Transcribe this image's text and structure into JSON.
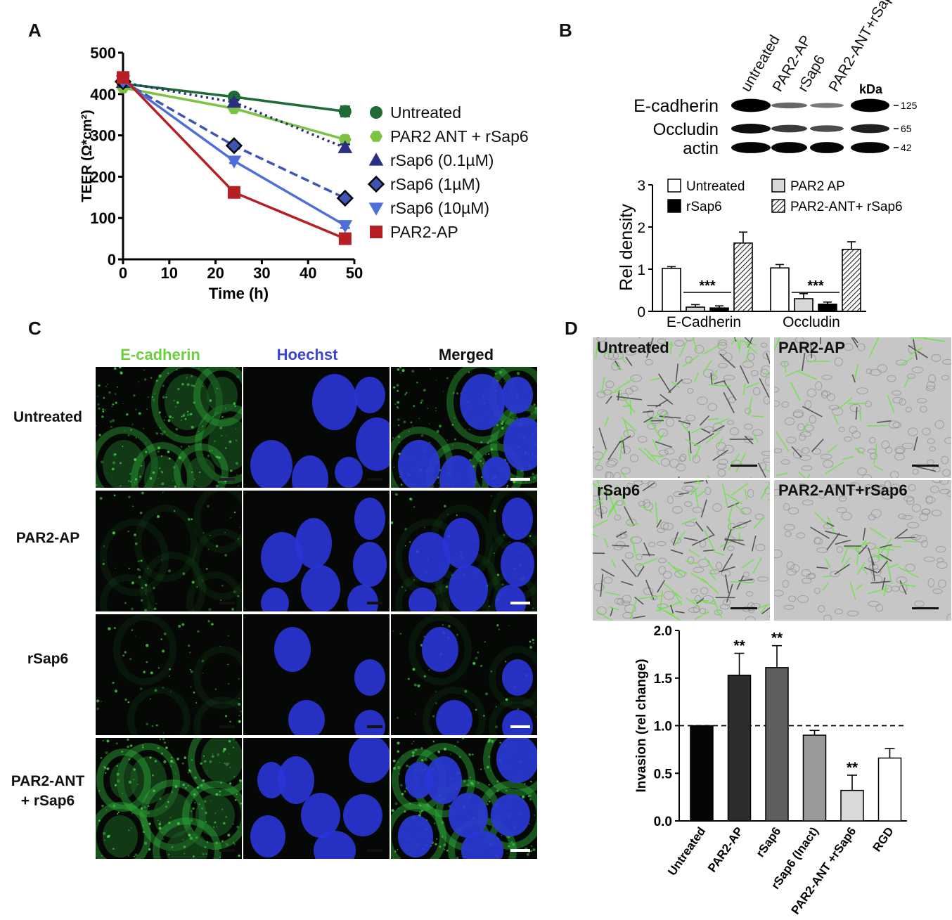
{
  "panels": {
    "a": "A",
    "b": "B",
    "c": "C",
    "d": "D"
  },
  "colors": {
    "green_dark": "#1e6b35",
    "green_light": "#7cc243",
    "navy": "#2a2f7f",
    "blue_mid": "#3f55b5",
    "blue_light": "#4f6fd8",
    "red": "#b52025"
  },
  "chart_data": [
    {
      "type": "line",
      "panel": "A",
      "xlabel": "Time (h)",
      "ylabel": "TEER (Ω*cm²)",
      "xlim": [
        0,
        50
      ],
      "ylim": [
        0,
        500
      ],
      "xticks": [
        "0",
        "10",
        "20",
        "30",
        "40",
        "50"
      ],
      "yticks": [
        "0",
        "100",
        "200",
        "300",
        "400",
        "500"
      ],
      "x": [
        0,
        24,
        48
      ],
      "legend_position": "right",
      "series": [
        {
          "name": "Untreated",
          "values": [
            425,
            393,
            358
          ],
          "err": [
            0,
            6,
            12
          ],
          "marker": "circle",
          "dash": "solid",
          "color": "#1e6b35"
        },
        {
          "name": "PAR2 ANT + rSap6",
          "values": [
            415,
            365,
            290
          ],
          "err": [
            0,
            5,
            8
          ],
          "marker": "hexagon",
          "dash": "solid",
          "color": "#7cc243"
        },
        {
          "name": "rSap6 (0.1µM)",
          "values": [
            428,
            380,
            270
          ],
          "err": [
            0,
            5,
            8
          ],
          "marker": "triangle",
          "dash": "dotted",
          "color": "#2a2f7f"
        },
        {
          "name": "rSap6 (1µM)",
          "values": [
            430,
            275,
            148
          ],
          "err": [
            0,
            5,
            6
          ],
          "marker": "diamond",
          "dash": "dashed",
          "color": "#3f55b5"
        },
        {
          "name": "rSap6 (10µM)",
          "values": [
            432,
            238,
            82
          ],
          "err": [
            0,
            5,
            6
          ],
          "marker": "triangle-down",
          "dash": "solid",
          "color": "#4f6fd8"
        },
        {
          "name": "PAR2-AP",
          "values": [
            440,
            162,
            50
          ],
          "err": [
            0,
            4,
            5
          ],
          "marker": "square",
          "dash": "solid",
          "color": "#b52025"
        }
      ]
    },
    {
      "type": "bar",
      "panel": "B",
      "ylabel": "Rel density",
      "ylim": [
        0,
        3
      ],
      "yticks": [
        "0",
        "1",
        "2",
        "3"
      ],
      "categories": [
        "E-Cadherin",
        "Occludin"
      ],
      "significance": [
        "***",
        "***"
      ],
      "legend_position": "top",
      "series": [
        {
          "name": "Untreated",
          "values": [
            1.02,
            1.03
          ],
          "err": [
            0.04,
            0.08
          ],
          "fill": "white"
        },
        {
          "name": "PAR2 AP",
          "values": [
            0.1,
            0.3
          ],
          "err": [
            0.06,
            0.12
          ],
          "fill": "lightgray"
        },
        {
          "name": "rSap6",
          "values": [
            0.08,
            0.17
          ],
          "err": [
            0.05,
            0.05
          ],
          "fill": "black"
        },
        {
          "name": "PAR2-ANT+ rSap6",
          "values": [
            1.62,
            1.47
          ],
          "err": [
            0.26,
            0.18
          ],
          "fill": "hatched"
        }
      ]
    },
    {
      "type": "bar",
      "panel": "D",
      "ylabel": "Invasion (rel change)",
      "ylim": [
        0,
        2.0
      ],
      "yticks": [
        "0.0",
        "0.5",
        "1.0",
        "1.5",
        "2.0"
      ],
      "reference_line": 1.0,
      "categories": [
        "Untreated",
        "PAR2-AP",
        "rSap6",
        "rSap6 (Inact)",
        "PAR2-ANT +rSap6",
        "RGD"
      ],
      "values": [
        1.0,
        1.53,
        1.61,
        0.9,
        0.32,
        0.66
      ],
      "err": [
        0.0,
        0.23,
        0.23,
        0.05,
        0.16,
        0.1
      ],
      "significance": [
        "",
        "**",
        "**",
        "",
        "**",
        ""
      ],
      "colors": [
        "#050505",
        "#2d2d2d",
        "#5e5e5e",
        "#9a9a9a",
        "#d9d9d9",
        "#ffffff"
      ]
    }
  ],
  "blot": {
    "lanes": [
      "untreated",
      "PAR2-AP",
      "rSap6",
      "PAR2-ANT+rSap6"
    ],
    "rows": [
      "E-cadherin",
      "Occludin",
      "actin"
    ],
    "kda_label": "kDa",
    "markers": [
      "125",
      "65",
      "42"
    ]
  },
  "panel_c": {
    "channels": [
      "E-cadherin",
      "Hoechst",
      "Merged"
    ],
    "rows": [
      "Untreated",
      "PAR2-AP",
      "rSap6",
      "PAR2-ANT\n+ rSap6"
    ]
  },
  "panel_d": {
    "images": [
      "Untreated",
      "PAR2-AP",
      "rSap6",
      "PAR2-ANT+rSap6"
    ]
  }
}
